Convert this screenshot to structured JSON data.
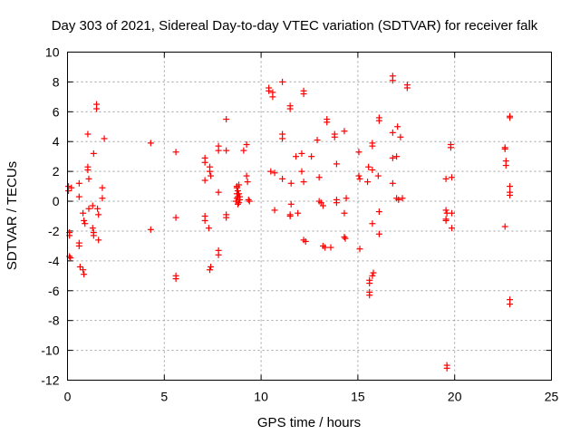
{
  "chart_data": {
    "type": "scatter",
    "title": "Day 303 of 2021, Sidereal Day-to-day VTEC variation (SDTVAR) for receiver falk",
    "xlabel": "GPS time / hours",
    "ylabel": "SDTVAR / TECUs",
    "xlim": [
      0,
      25
    ],
    "ylim": [
      -12,
      10
    ],
    "xticks": [
      0,
      5,
      10,
      15,
      20,
      25
    ],
    "yticks": [
      -12,
      -10,
      -8,
      -6,
      -4,
      -2,
      0,
      2,
      4,
      6,
      8,
      10
    ],
    "grid": true,
    "marker": "+",
    "color": "#ff0000",
    "points": [
      [
        0.05,
        1.0
      ],
      [
        0.05,
        0.7
      ],
      [
        0.1,
        -2.1
      ],
      [
        0.1,
        -2.3
      ],
      [
        0.1,
        -3.7
      ],
      [
        0.15,
        -3.8
      ],
      [
        0.2,
        0.9
      ],
      [
        0.6,
        1.2
      ],
      [
        0.6,
        0.3
      ],
      [
        0.6,
        -2.8
      ],
      [
        0.6,
        -3.0
      ],
      [
        0.65,
        -4.4
      ],
      [
        0.8,
        -4.6
      ],
      [
        0.85,
        -4.9
      ],
      [
        0.8,
        -0.8
      ],
      [
        0.85,
        -1.3
      ],
      [
        0.9,
        -1.5
      ],
      [
        1.05,
        4.5
      ],
      [
        1.05,
        2.3
      ],
      [
        1.05,
        2.1
      ],
      [
        1.1,
        1.5
      ],
      [
        1.1,
        -0.5
      ],
      [
        1.3,
        -0.3
      ],
      [
        1.3,
        -1.8
      ],
      [
        1.35,
        -2.1
      ],
      [
        1.35,
        -2.3
      ],
      [
        1.35,
        3.2
      ],
      [
        1.5,
        6.5
      ],
      [
        1.5,
        6.2
      ],
      [
        1.55,
        -0.5
      ],
      [
        1.6,
        -0.9
      ],
      [
        1.6,
        -2.6
      ],
      [
        1.8,
        0.9
      ],
      [
        1.8,
        0.2
      ],
      [
        1.9,
        4.2
      ],
      [
        4.3,
        3.9
      ],
      [
        4.3,
        -1.9
      ],
      [
        5.6,
        3.3
      ],
      [
        5.6,
        -1.1
      ],
      [
        5.6,
        -5.0
      ],
      [
        5.6,
        -5.2
      ],
      [
        7.1,
        2.9
      ],
      [
        7.1,
        2.6
      ],
      [
        7.1,
        1.4
      ],
      [
        7.1,
        -1.0
      ],
      [
        7.1,
        -1.3
      ],
      [
        7.35,
        2.3
      ],
      [
        7.35,
        2.0
      ],
      [
        7.4,
        1.7
      ],
      [
        7.3,
        -1.8
      ],
      [
        7.4,
        -4.4
      ],
      [
        7.35,
        -4.6
      ],
      [
        7.8,
        3.7
      ],
      [
        7.8,
        3.4
      ],
      [
        7.8,
        0.6
      ],
      [
        7.8,
        -3.3
      ],
      [
        7.8,
        -3.6
      ],
      [
        8.2,
        5.5
      ],
      [
        8.2,
        3.4
      ],
      [
        8.2,
        -0.9
      ],
      [
        8.2,
        -1.1
      ],
      [
        8.75,
        1.0
      ],
      [
        8.75,
        0.9
      ],
      [
        8.8,
        0.7
      ],
      [
        8.75,
        0.5
      ],
      [
        8.8,
        0.3
      ],
      [
        8.75,
        0.2
      ],
      [
        8.7,
        0.0
      ],
      [
        8.85,
        1.1
      ],
      [
        8.85,
        0.5
      ],
      [
        8.9,
        0.3
      ],
      [
        8.9,
        0.1
      ],
      [
        8.85,
        -0.1
      ],
      [
        8.8,
        -0.2
      ],
      [
        9.1,
        3.4
      ],
      [
        9.25,
        3.8
      ],
      [
        9.25,
        1.7
      ],
      [
        9.3,
        1.3
      ],
      [
        9.35,
        0.1
      ],
      [
        9.4,
        0.0
      ],
      [
        10.4,
        7.6
      ],
      [
        10.4,
        7.4
      ],
      [
        10.6,
        7.3
      ],
      [
        10.6,
        7.0
      ],
      [
        10.5,
        2.0
      ],
      [
        10.7,
        1.9
      ],
      [
        10.7,
        -0.6
      ],
      [
        11.1,
        8.0
      ],
      [
        11.1,
        4.5
      ],
      [
        11.1,
        4.2
      ],
      [
        11.1,
        1.5
      ],
      [
        11.5,
        6.4
      ],
      [
        11.5,
        6.2
      ],
      [
        11.55,
        1.2
      ],
      [
        11.55,
        -0.2
      ],
      [
        11.5,
        -0.9
      ],
      [
        11.5,
        -1.0
      ],
      [
        11.8,
        3.0
      ],
      [
        11.9,
        -0.8
      ],
      [
        12.1,
        3.2
      ],
      [
        12.2,
        7.4
      ],
      [
        12.2,
        7.2
      ],
      [
        12.1,
        2.0
      ],
      [
        12.2,
        1.3
      ],
      [
        12.2,
        -2.6
      ],
      [
        12.3,
        -2.7
      ],
      [
        12.6,
        3.0
      ],
      [
        12.9,
        4.1
      ],
      [
        13.0,
        1.6
      ],
      [
        13.0,
        0.0
      ],
      [
        13.1,
        -0.1
      ],
      [
        13.2,
        -0.3
      ],
      [
        13.2,
        -3.0
      ],
      [
        13.4,
        5.5
      ],
      [
        13.4,
        5.3
      ],
      [
        13.3,
        -3.1
      ],
      [
        13.6,
        -3.1
      ],
      [
        13.8,
        4.5
      ],
      [
        13.8,
        4.3
      ],
      [
        13.9,
        2.5
      ],
      [
        13.9,
        0.1
      ],
      [
        13.9,
        -0.1
      ],
      [
        14.3,
        4.7
      ],
      [
        14.4,
        0.2
      ],
      [
        14.3,
        -0.8
      ],
      [
        14.3,
        -2.4
      ],
      [
        14.35,
        -2.5
      ],
      [
        15.05,
        3.3
      ],
      [
        15.05,
        1.7
      ],
      [
        15.1,
        1.5
      ],
      [
        15.1,
        -3.2
      ],
      [
        15.55,
        2.3
      ],
      [
        15.5,
        1.3
      ],
      [
        15.6,
        -5.3
      ],
      [
        15.6,
        -5.5
      ],
      [
        15.6,
        -6.1
      ],
      [
        15.6,
        -6.3
      ],
      [
        15.75,
        3.9
      ],
      [
        15.75,
        3.7
      ],
      [
        15.75,
        2.1
      ],
      [
        15.75,
        -1.5
      ],
      [
        15.8,
        -4.8
      ],
      [
        15.75,
        -5.0
      ],
      [
        16.05,
        1.7
      ],
      [
        16.1,
        5.6
      ],
      [
        16.1,
        5.4
      ],
      [
        16.1,
        -0.7
      ],
      [
        16.1,
        -2.2
      ],
      [
        16.8,
        8.4
      ],
      [
        16.8,
        8.1
      ],
      [
        16.8,
        4.6
      ],
      [
        16.8,
        2.9
      ],
      [
        16.8,
        1.2
      ],
      [
        17.05,
        5.0
      ],
      [
        17.0,
        3.0
      ],
      [
        17.0,
        0.2
      ],
      [
        17.1,
        0.1
      ],
      [
        17.2,
        4.3
      ],
      [
        17.3,
        0.2
      ],
      [
        17.55,
        7.8
      ],
      [
        17.55,
        7.6
      ],
      [
        19.55,
        1.5
      ],
      [
        19.55,
        -0.6
      ],
      [
        19.6,
        -0.8
      ],
      [
        19.55,
        -1.2
      ],
      [
        19.55,
        -1.3
      ],
      [
        19.6,
        -11.0
      ],
      [
        19.6,
        -11.2
      ],
      [
        19.8,
        3.8
      ],
      [
        19.8,
        3.6
      ],
      [
        19.85,
        1.6
      ],
      [
        19.85,
        -0.8
      ],
      [
        19.85,
        -1.8
      ],
      [
        22.6,
        3.6
      ],
      [
        22.6,
        3.5
      ],
      [
        22.65,
        2.7
      ],
      [
        22.65,
        2.4
      ],
      [
        22.6,
        -1.7
      ],
      [
        22.85,
        5.7
      ],
      [
        22.85,
        5.6
      ],
      [
        22.85,
        1.0
      ],
      [
        22.85,
        0.6
      ],
      [
        22.85,
        0.4
      ],
      [
        22.85,
        -6.6
      ],
      [
        22.85,
        -6.9
      ]
    ]
  }
}
